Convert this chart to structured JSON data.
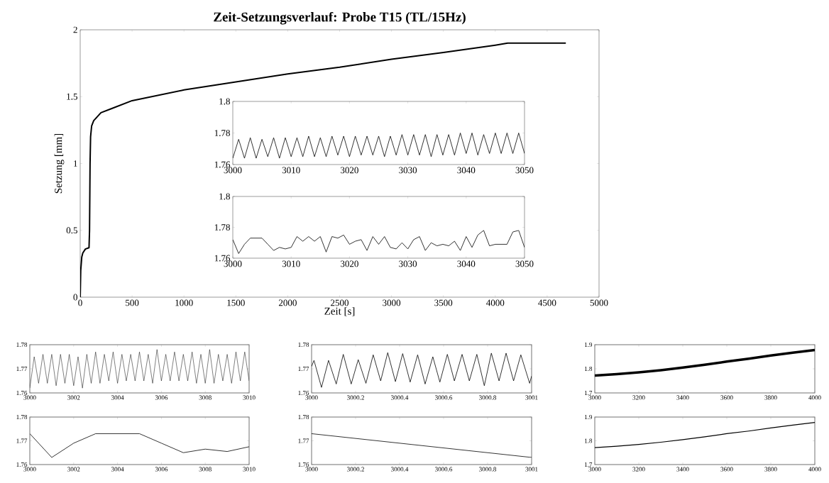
{
  "chart_data": [
    {
      "type": "line",
      "title": "Zeit-Setzungsverlauf: Probe T15 (TL/15Hz)",
      "xlabel": "Zeit [s]",
      "ylabel": "Setzung [mm]",
      "color": "#000000",
      "x": [
        0,
        5,
        15,
        25,
        50,
        85,
        90,
        95,
        100,
        110,
        130,
        200,
        300,
        500,
        750,
        1000,
        1500,
        2000,
        2500,
        3000,
        3500,
        4000,
        4120,
        4200,
        4680
      ],
      "values": [
        0,
        0.2,
        0.3,
        0.33,
        0.36,
        0.37,
        0.5,
        1.0,
        1.2,
        1.28,
        1.32,
        1.38,
        1.41,
        1.47,
        1.51,
        1.55,
        1.61,
        1.67,
        1.72,
        1.78,
        1.83,
        1.885,
        1.9,
        1.9,
        1.9
      ],
      "xlim": [
        0,
        5000
      ],
      "ylim": [
        0,
        2
      ],
      "xticks": [
        0,
        500,
        1000,
        1500,
        2000,
        2500,
        3000,
        3500,
        4000,
        4500,
        5000
      ],
      "yticks": [
        0,
        0.5,
        1,
        1.5,
        2
      ]
    },
    {
      "type": "line",
      "color": "#000000",
      "x": [
        3000,
        3001,
        3002,
        3003,
        3004,
        3005,
        3006,
        3007,
        3008,
        3009,
        3010,
        3011,
        3012,
        3013,
        3014,
        3015,
        3016,
        3017,
        3018,
        3019,
        3020,
        3021,
        3022,
        3023,
        3024,
        3025,
        3026,
        3027,
        3028,
        3029,
        3030,
        3031,
        3032,
        3033,
        3034,
        3035,
        3036,
        3037,
        3038,
        3039,
        3040,
        3041,
        3042,
        3043,
        3044,
        3045,
        3046,
        3047,
        3048,
        3049,
        3050
      ],
      "values": [
        1.764,
        1.776,
        1.764,
        1.777,
        1.764,
        1.776,
        1.765,
        1.777,
        1.764,
        1.777,
        1.765,
        1.777,
        1.765,
        1.778,
        1.765,
        1.777,
        1.765,
        1.778,
        1.766,
        1.778,
        1.765,
        1.778,
        1.766,
        1.778,
        1.766,
        1.778,
        1.765,
        1.778,
        1.766,
        1.779,
        1.766,
        1.779,
        1.766,
        1.779,
        1.765,
        1.779,
        1.766,
        1.779,
        1.766,
        1.78,
        1.767,
        1.78,
        1.766,
        1.779,
        1.767,
        1.78,
        1.767,
        1.78,
        1.767,
        1.78,
        1.767
      ],
      "xlim": [
        3000,
        3050
      ],
      "ylim": [
        1.76,
        1.8
      ],
      "xticks": [
        3000,
        3010,
        3020,
        3030,
        3040,
        3050
      ],
      "yticks": [
        1.76,
        1.78,
        1.8
      ]
    },
    {
      "type": "line",
      "color": "#000000",
      "x": [
        3000,
        3001,
        3002,
        3003,
        3004,
        3005,
        3006,
        3007,
        3008,
        3009,
        3010,
        3011,
        3012,
        3013,
        3014,
        3015,
        3016,
        3017,
        3018,
        3019,
        3020,
        3021,
        3022,
        3023,
        3024,
        3025,
        3026,
        3027,
        3028,
        3029,
        3030,
        3031,
        3032,
        3033,
        3034,
        3035,
        3036,
        3037,
        3038,
        3039,
        3040,
        3041,
        3042,
        3043,
        3044,
        3045,
        3046,
        3047,
        3048,
        3049,
        3050
      ],
      "values": [
        1.772,
        1.763,
        1.769,
        1.773,
        1.773,
        1.773,
        1.769,
        1.765,
        1.767,
        1.766,
        1.767,
        1.774,
        1.771,
        1.774,
        1.771,
        1.774,
        1.764,
        1.774,
        1.773,
        1.775,
        1.769,
        1.771,
        1.772,
        1.765,
        1.774,
        1.769,
        1.774,
        1.767,
        1.766,
        1.77,
        1.766,
        1.772,
        1.774,
        1.765,
        1.77,
        1.768,
        1.769,
        1.768,
        1.771,
        1.765,
        1.774,
        1.767,
        1.775,
        1.778,
        1.768,
        1.769,
        1.769,
        1.769,
        1.777,
        1.778,
        1.767
      ],
      "xlim": [
        3000,
        3050
      ],
      "ylim": [
        1.76,
        1.8
      ],
      "xticks": [
        3000,
        3010,
        3020,
        3030,
        3040,
        3050
      ],
      "yticks": [
        1.76,
        1.78,
        1.8
      ]
    },
    {
      "type": "line",
      "color": "#000000",
      "x": [
        3000,
        3000.2,
        3000.4,
        3000.6,
        3000.8,
        3001,
        3001.2,
        3001.4,
        3001.6,
        3001.8,
        3002,
        3002.2,
        3002.4,
        3002.6,
        3002.8,
        3003,
        3003.2,
        3003.4,
        3003.6,
        3003.8,
        3004,
        3004.2,
        3004.4,
        3004.6,
        3004.8,
        3005,
        3005.2,
        3005.4,
        3005.6,
        3005.8,
        3006,
        3006.2,
        3006.4,
        3006.6,
        3006.8,
        3007,
        3007.2,
        3007.4,
        3007.6,
        3007.8,
        3008,
        3008.2,
        3008.4,
        3008.6,
        3008.8,
        3009,
        3009.2,
        3009.4,
        3009.6,
        3009.8,
        3010
      ],
      "values": [
        1.762,
        1.775,
        1.764,
        1.776,
        1.764,
        1.776,
        1.763,
        1.776,
        1.764,
        1.776,
        1.763,
        1.775,
        1.762,
        1.776,
        1.764,
        1.777,
        1.764,
        1.776,
        1.765,
        1.777,
        1.764,
        1.776,
        1.765,
        1.776,
        1.765,
        1.777,
        1.765,
        1.776,
        1.764,
        1.778,
        1.765,
        1.776,
        1.765,
        1.777,
        1.765,
        1.776,
        1.765,
        1.777,
        1.764,
        1.776,
        1.764,
        1.778,
        1.764,
        1.776,
        1.765,
        1.776,
        1.764,
        1.777,
        1.765,
        1.777,
        1.765
      ],
      "xlim": [
        3000,
        3010
      ],
      "ylim": [
        1.76,
        1.78
      ],
      "xticks": [
        3000,
        3002,
        3004,
        3006,
        3008,
        3010
      ],
      "yticks": [
        1.76,
        1.77,
        1.78
      ]
    },
    {
      "type": "line",
      "color": "#000000",
      "x": [
        3000,
        3001,
        3002,
        3003,
        3004,
        3005,
        3006,
        3007,
        3008,
        3009,
        3010
      ],
      "values": [
        1.773,
        1.763,
        1.769,
        1.773,
        1.773,
        1.773,
        1.769,
        1.765,
        1.7665,
        1.7655,
        1.7675
      ],
      "xlim": [
        3000,
        3010
      ],
      "ylim": [
        1.76,
        1.78
      ],
      "xticks": [
        3000,
        3002,
        3004,
        3006,
        3008,
        3010
      ],
      "yticks": [
        1.76,
        1.77,
        1.78
      ]
    },
    {
      "type": "line",
      "color": "#000000",
      "x": [
        3000,
        3000.011,
        3000.045,
        3000.077,
        3000.112,
        3000.144,
        3000.18,
        3000.212,
        3000.247,
        3000.28,
        3000.314,
        3000.346,
        3000.381,
        3000.414,
        3000.448,
        3000.482,
        3000.516,
        3000.551,
        3000.583,
        3000.617,
        3000.649,
        3000.684,
        3000.717,
        3000.751,
        3000.785,
        3000.817,
        3000.852,
        3000.884,
        3000.918,
        3000.951,
        3000.991,
        3001
      ],
      "values": [
        1.771,
        1.7735,
        1.7623,
        1.7735,
        1.7637,
        1.776,
        1.7637,
        1.7738,
        1.764,
        1.7758,
        1.765,
        1.7767,
        1.7647,
        1.7763,
        1.7645,
        1.7758,
        1.7637,
        1.775,
        1.7645,
        1.776,
        1.765,
        1.776,
        1.765,
        1.776,
        1.763,
        1.7765,
        1.765,
        1.7765,
        1.765,
        1.7758,
        1.764,
        1.767
      ],
      "xlim": [
        3000,
        3001
      ],
      "ylim": [
        1.76,
        1.78
      ],
      "xticks": [
        3000,
        3000.2,
        3000.4,
        3000.6,
        3000.8,
        3001
      ],
      "yticks": [
        1.76,
        1.77,
        1.78
      ]
    },
    {
      "type": "line",
      "color": "#000000",
      "x": [
        3000,
        3001
      ],
      "values": [
        1.773,
        1.763
      ],
      "xlim": [
        3000,
        3001
      ],
      "ylim": [
        1.76,
        1.78
      ],
      "xticks": [
        3000,
        3000.2,
        3000.4,
        3000.6,
        3000.8,
        3001
      ],
      "yticks": [
        1.76,
        1.77,
        1.78
      ]
    },
    {
      "type": "line",
      "color": "#000000",
      "x": [
        3000,
        3100,
        3200,
        3300,
        3400,
        3500,
        3600,
        3700,
        3800,
        3900,
        4000
      ],
      "values": [
        1.772,
        1.778,
        1.785,
        1.794,
        1.805,
        1.817,
        1.83,
        1.842,
        1.855,
        1.867,
        1.878
      ],
      "xlim": [
        3000,
        4000
      ],
      "ylim": [
        1.7,
        1.9
      ],
      "xticks": [
        3000,
        3200,
        3400,
        3600,
        3800,
        4000
      ],
      "yticks": [
        1.7,
        1.8,
        1.9
      ]
    },
    {
      "type": "line",
      "color": "#000000",
      "x": [
        3000,
        3100,
        3200,
        3300,
        3400,
        3500,
        3600,
        3700,
        3800,
        3900,
        4000
      ],
      "values": [
        1.771,
        1.777,
        1.785,
        1.794,
        1.805,
        1.817,
        1.83,
        1.841,
        1.854,
        1.866,
        1.877
      ],
      "xlim": [
        3000,
        4000
      ],
      "ylim": [
        1.7,
        1.9
      ],
      "xticks": [
        3000,
        3200,
        3400,
        3600,
        3800,
        4000
      ],
      "yticks": [
        1.7,
        1.8,
        1.9
      ]
    }
  ]
}
